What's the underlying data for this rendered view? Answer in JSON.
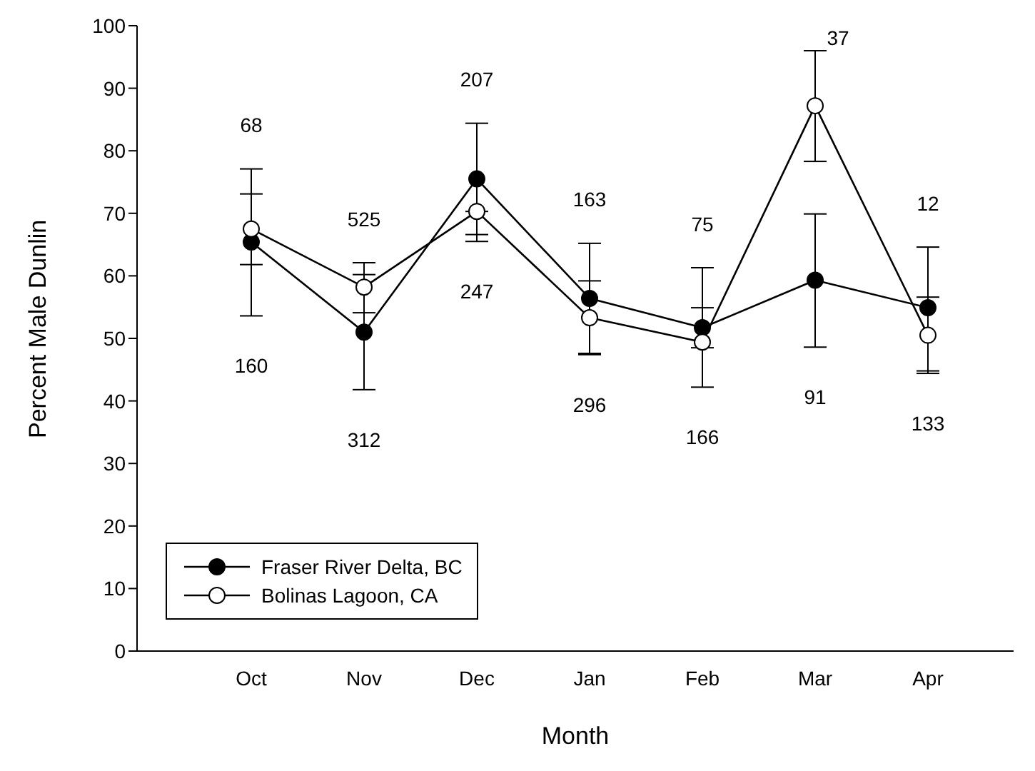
{
  "chart_data": {
    "type": "line",
    "xlabel": "Month",
    "ylabel": "Percent Male Dunlin",
    "categories": [
      "Oct",
      "Nov",
      "Dec",
      "Jan",
      "Feb",
      "Mar",
      "Apr"
    ],
    "series": [
      {
        "name": "Fraser River Delta, BC",
        "color": "#000000",
        "values": [
          65.4,
          51.0,
          75.5,
          56.4,
          51.7,
          59.3,
          54.9
        ],
        "errors": [
          [
            53.6,
            77.1
          ],
          [
            41.8,
            60.2
          ],
          [
            66.6,
            84.4
          ],
          [
            47.6,
            65.2
          ],
          [
            48.5,
            54.9
          ],
          [
            48.6,
            69.9
          ],
          [
            44.8,
            64.6
          ]
        ]
      },
      {
        "name": "Bolinas Lagoon, CA",
        "color": "#000000",
        "values": [
          67.5,
          58.2,
          70.3,
          53.3,
          49.4,
          87.2,
          50.5
        ],
        "errors": [
          [
            61.8,
            73.1
          ],
          [
            54.1,
            62.1
          ],
          [
            65.5,
            70.3
          ],
          [
            47.4,
            59.2
          ],
          [
            42.2,
            61.3
          ],
          [
            78.3,
            96.0
          ],
          [
            44.4,
            56.6
          ]
        ]
      }
    ],
    "annotations": [
      "68",
      "160",
      "525",
      "312",
      "207",
      "247",
      "163",
      "296",
      "75",
      "166",
      "37",
      "91",
      "12",
      "133"
    ],
    "ylim": [
      0,
      100
    ],
    "yticks": [
      0,
      10,
      20,
      30,
      40,
      50,
      60,
      70,
      80,
      90,
      100
    ],
    "grid": false,
    "legend": "bottom left",
    "marker": "circle",
    "line_style": "solid"
  }
}
